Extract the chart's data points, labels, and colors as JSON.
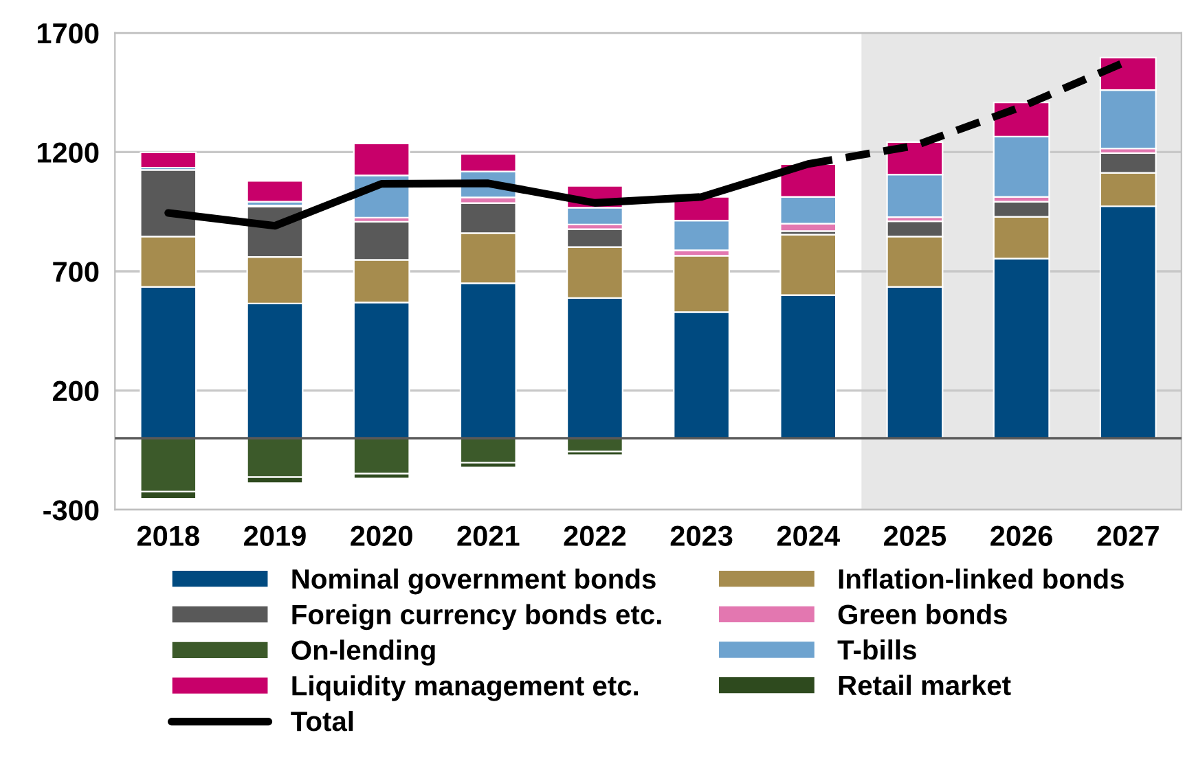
{
  "chart_data": {
    "type": "bar",
    "stacked": true,
    "categories": [
      "2018",
      "2019",
      "2020",
      "2021",
      "2022",
      "2023",
      "2024",
      "2025",
      "2026",
      "2027"
    ],
    "ylim": [
      -300,
      1700
    ],
    "yticks": [
      -300,
      200,
      700,
      1200,
      1700
    ],
    "grid": "y",
    "legend": "bottom",
    "series": [
      {
        "name": "Nominal government bonds",
        "color": "#004a80",
        "values": [
          635,
          565,
          569,
          650,
          588,
          529,
          600,
          635,
          754,
          973
        ]
      },
      {
        "name": "Inflation-linked bonds",
        "color": "#a68c4e",
        "values": [
          211,
          195,
          179,
          210,
          214,
          236,
          254,
          211,
          175,
          140
        ]
      },
      {
        "name": "Foreign currency bonds etc.",
        "color": "#595959",
        "values": [
          279,
          211,
          160,
          126,
          75,
          null,
          15,
          64,
          63,
          83
        ]
      },
      {
        "name": "Green bonds",
        "color": "#e377b0",
        "values": [
          null,
          5,
          17,
          24,
          19,
          23,
          31,
          17,
          20,
          19
        ]
      },
      {
        "name": "On-lending",
        "color": "#3c5a2a",
        "values": [
          -224,
          -163,
          -149,
          -103,
          -56,
          null,
          null,
          null,
          null,
          null
        ]
      },
      {
        "name": "T-bills",
        "color": "#6ea3cf",
        "values": [
          10,
          16,
          177,
          109,
          71,
          125,
          112,
          179,
          253,
          245
        ]
      },
      {
        "name": "Liquidity management etc.",
        "color": "#c8006a",
        "values": [
          64,
          87,
          134,
          73,
          91,
          99,
          138,
          136,
          143,
          136
        ]
      },
      {
        "name": "Retail market",
        "color": "#2e4a1e",
        "values": [
          -30,
          -25,
          -20,
          -20,
          -15,
          null,
          null,
          null,
          null,
          null
        ]
      },
      {
        "name": "Total",
        "type": "line",
        "color": "#000000",
        "line_style": "solid",
        "values": [
          945,
          891,
          1067,
          1069,
          987,
          1012,
          1150,
          null,
          null,
          null
        ]
      },
      {
        "type": "line",
        "color": "#000000",
        "line_style": "dashed",
        "values": [
          null,
          null,
          null,
          null,
          null,
          null,
          1150,
          1227,
          1390,
          1583
        ]
      }
    ],
    "bands": [
      {
        "axis": "x",
        "from": "2025",
        "to": "2027",
        "color": "#e7e7e7"
      }
    ],
    "ref_lines": [
      {
        "axis": "y",
        "value": 0,
        "color": "#595959"
      }
    ]
  }
}
